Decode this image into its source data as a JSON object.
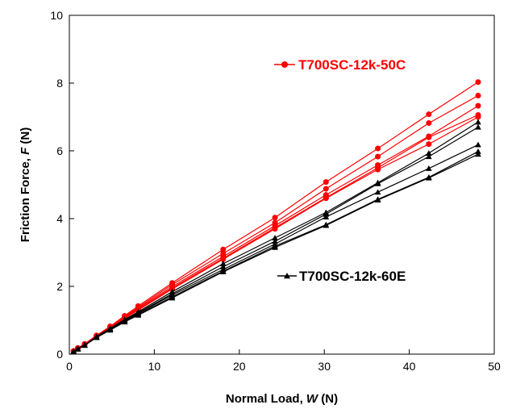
{
  "chart_data": {
    "type": "line",
    "xlabel": {
      "prefix": "Normal Load, ",
      "symbol": "W",
      "suffix": " (N)"
    },
    "ylabel": {
      "prefix": "Friction Force, ",
      "symbol": "F",
      "suffix": " (N)"
    },
    "xlim": [
      0,
      50
    ],
    "ylim": [
      0,
      10
    ],
    "xticks": [
      0,
      10,
      20,
      30,
      40,
      50
    ],
    "yticks": [
      0,
      2,
      4,
      6,
      8,
      10
    ],
    "grid": false,
    "x": [
      0.5,
      1.0,
      1.8,
      3.2,
      4.8,
      6.5,
      8.1,
      12.1,
      18.1,
      24.2,
      30.2,
      36.3,
      42.3,
      48.1
    ],
    "series": [
      {
        "group": "T700SC-12k-50C",
        "color": "#ff0000",
        "marker": "circle",
        "values": [
          0.09,
          0.18,
          0.3,
          0.55,
          0.82,
          1.13,
          1.42,
          2.1,
          3.09,
          4.03,
          5.08,
          6.07,
          7.08,
          8.03
        ]
      },
      {
        "group": "T700SC-12k-50C",
        "color": "#ff0000",
        "marker": "circle",
        "values": [
          0.09,
          0.18,
          0.3,
          0.55,
          0.8,
          1.1,
          1.38,
          2.05,
          2.97,
          3.88,
          4.88,
          5.83,
          6.82,
          7.63
        ]
      },
      {
        "group": "T700SC-12k-50C",
        "color": "#ff0000",
        "marker": "circle",
        "values": [
          0.09,
          0.18,
          0.29,
          0.54,
          0.79,
          1.08,
          1.35,
          1.99,
          2.88,
          3.79,
          4.7,
          5.58,
          6.43,
          7.33
        ]
      },
      {
        "group": "T700SC-12k-50C",
        "color": "#ff0000",
        "marker": "circle",
        "values": [
          0.09,
          0.17,
          0.28,
          0.53,
          0.78,
          1.06,
          1.32,
          1.95,
          2.83,
          3.73,
          4.62,
          5.5,
          6.4,
          7.06
        ]
      },
      {
        "group": "T700SC-12k-50C",
        "color": "#ff0000",
        "marker": "circle",
        "values": [
          0.09,
          0.17,
          0.28,
          0.52,
          0.77,
          1.05,
          1.3,
          1.92,
          2.8,
          3.7,
          4.6,
          5.45,
          6.2,
          7.0
        ]
      },
      {
        "group": "T700SC-12k-60E",
        "color": "#000000",
        "marker": "triangle",
        "values": [
          0.08,
          0.16,
          0.27,
          0.52,
          0.76,
          1.02,
          1.25,
          1.84,
          2.67,
          3.43,
          4.18,
          5.06,
          5.93,
          6.85
        ]
      },
      {
        "group": "T700SC-12k-60E",
        "color": "#000000",
        "marker": "triangle",
        "values": [
          0.08,
          0.16,
          0.27,
          0.51,
          0.75,
          1.0,
          1.22,
          1.78,
          2.58,
          3.33,
          4.13,
          5.03,
          5.83,
          6.7
        ]
      },
      {
        "group": "T700SC-12k-60E",
        "color": "#000000",
        "marker": "triangle",
        "values": [
          0.08,
          0.16,
          0.27,
          0.5,
          0.73,
          0.98,
          1.2,
          1.74,
          2.5,
          3.25,
          4.05,
          4.78,
          5.48,
          6.18
        ]
      },
      {
        "group": "T700SC-12k-60E",
        "color": "#000000",
        "marker": "triangle",
        "values": [
          0.08,
          0.15,
          0.26,
          0.49,
          0.72,
          0.96,
          1.17,
          1.69,
          2.45,
          3.19,
          3.82,
          4.57,
          5.22,
          5.98
        ]
      },
      {
        "group": "T700SC-12k-60E",
        "color": "#000000",
        "marker": "triangle",
        "values": [
          0.08,
          0.15,
          0.26,
          0.49,
          0.71,
          0.95,
          1.15,
          1.66,
          2.43,
          3.15,
          3.8,
          4.55,
          5.2,
          5.9
        ]
      }
    ],
    "legend": [
      {
        "label": "T700SC-12k-50C",
        "color": "#ff0000",
        "marker": "circle",
        "placement": "upper-right"
      },
      {
        "label": "T700SC-12k-60E",
        "color": "#000000",
        "marker": "triangle",
        "placement": "center-right"
      }
    ]
  }
}
